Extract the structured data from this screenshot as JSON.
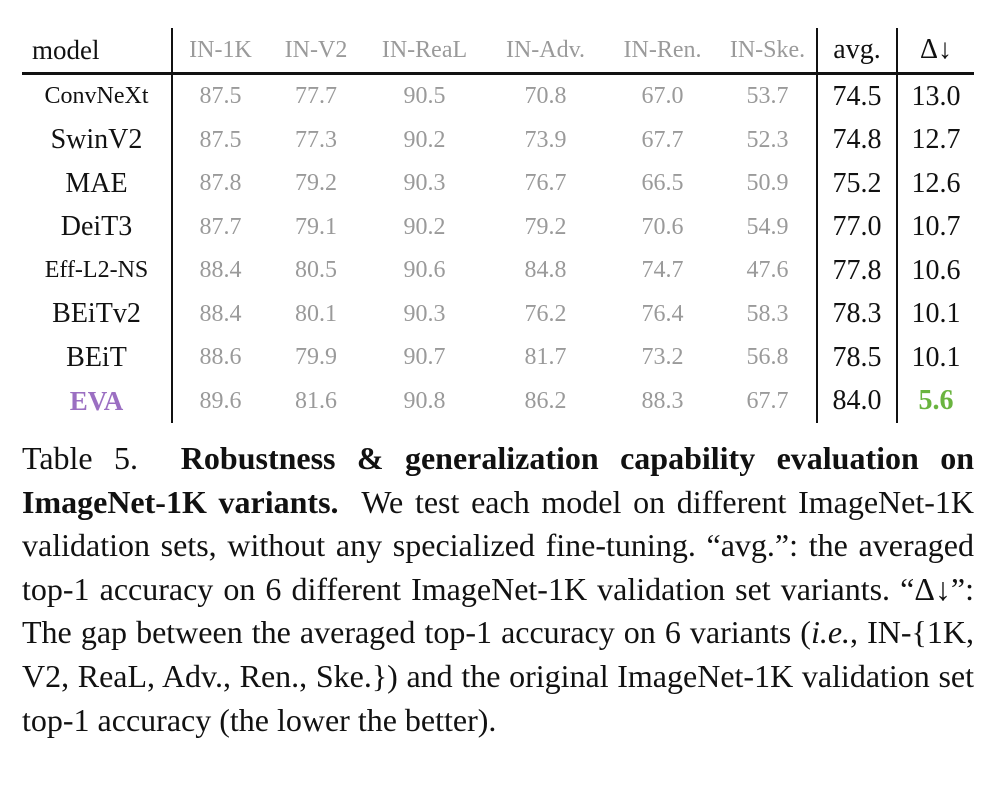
{
  "table": {
    "headers": {
      "model": "model",
      "benchmarks": [
        "IN-1K",
        "IN-V2",
        "IN-ReaL",
        "IN-Adv.",
        "IN-Ren.",
        "IN-Ske."
      ],
      "avg": "avg.",
      "delta": "Δ↓"
    },
    "rows": [
      {
        "model": "ConvNeXt",
        "values": [
          "87.5",
          "77.7",
          "90.5",
          "70.8",
          "67.0",
          "53.7"
        ],
        "avg": "74.5",
        "delta": "13.0"
      },
      {
        "model": "SwinV2",
        "values": [
          "87.5",
          "77.3",
          "90.2",
          "73.9",
          "67.7",
          "52.3"
        ],
        "avg": "74.8",
        "delta": "12.7"
      },
      {
        "model": "MAE",
        "values": [
          "87.8",
          "79.2",
          "90.3",
          "76.7",
          "66.5",
          "50.9"
        ],
        "avg": "75.2",
        "delta": "12.6"
      },
      {
        "model": "DeiT3",
        "values": [
          "87.7",
          "79.1",
          "90.2",
          "79.2",
          "70.6",
          "54.9"
        ],
        "avg": "77.0",
        "delta": "10.7"
      },
      {
        "model": "Eff-L2-NS",
        "values": [
          "88.4",
          "80.5",
          "90.6",
          "84.8",
          "74.7",
          "47.6"
        ],
        "avg": "77.8",
        "delta": "10.6"
      },
      {
        "model": "BEiTv2",
        "values": [
          "88.4",
          "80.1",
          "90.3",
          "76.2",
          "76.4",
          "58.3"
        ],
        "avg": "78.3",
        "delta": "10.1"
      },
      {
        "model": "BEiT",
        "values": [
          "88.6",
          "79.9",
          "90.7",
          "81.7",
          "73.2",
          "56.8"
        ],
        "avg": "78.5",
        "delta": "10.1"
      },
      {
        "model": "EVA",
        "values": [
          "89.6",
          "81.6",
          "90.8",
          "86.2",
          "88.3",
          "67.7"
        ],
        "avg": "84.0",
        "delta": "5.6"
      }
    ]
  },
  "caption": {
    "label": "Table 5.",
    "bold_title": "Robustness & generalization capability evaluation on ImageNet-1K variants.",
    "text1": "We test each model on different ImageNet-1K validation sets, without any specialized fine-tuning. “avg.”: the averaged top-1 accuracy on 6 different ImageNet-1K validation set variants. “Δ↓”: The gap between the averaged top-1 accuracy on 6 variants (",
    "ie": "i.e.",
    "text2": ", IN-{1K, V2, ReaL, Adv., Ren., Ske.}) and the original ImageNet-1K validation set top-1 accuracy (the lower the better)."
  },
  "colors": {
    "benchmark_text": "#9a9a9a",
    "eva_highlight": "#9b6fc2",
    "best_delta": "#6ab43f"
  }
}
